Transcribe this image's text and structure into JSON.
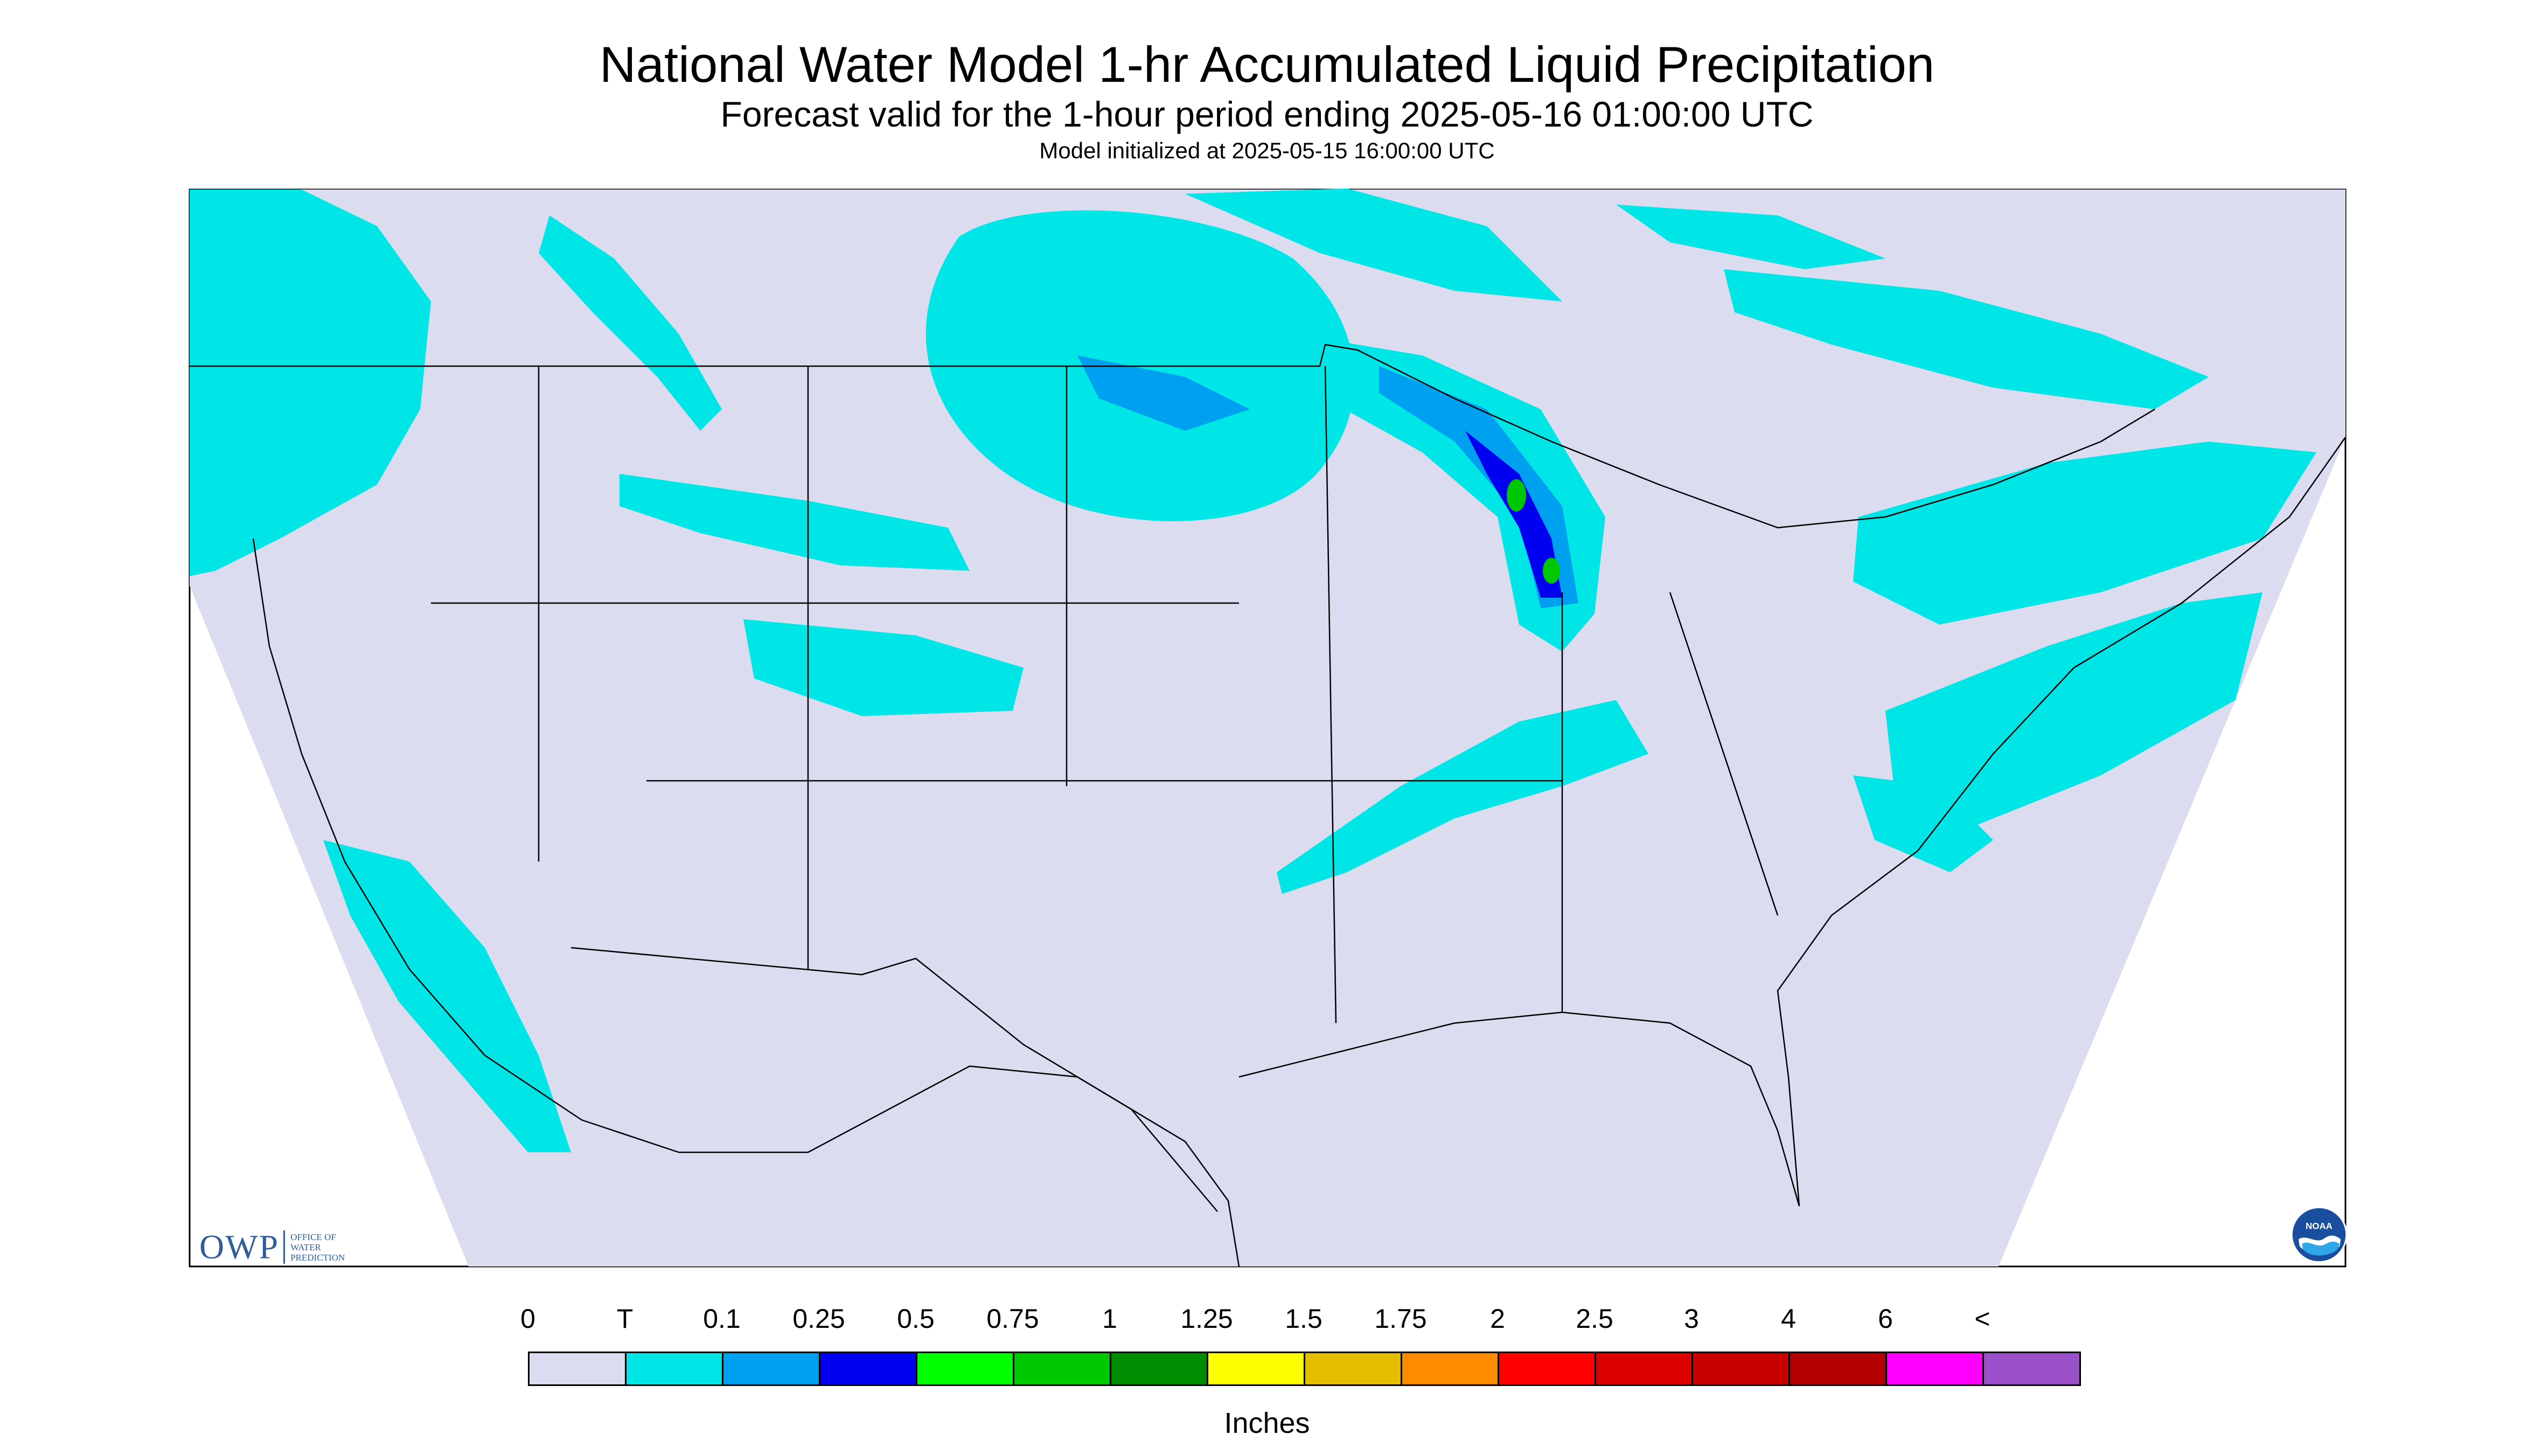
{
  "header": {
    "title": "National Water Model 1-hr Accumulated Liquid Precipitation",
    "subtitle": "Forecast valid for the 1-hour period ending 2025-05-16 01:00:00 UTC",
    "init": "Model initialized at 2025-05-15 16:00:00 UTC"
  },
  "legend": {
    "labels": [
      "0",
      "T",
      "0.1",
      "0.25",
      "0.5",
      "0.75",
      "1",
      "1.25",
      "1.5",
      "1.75",
      "2",
      "2.5",
      "3",
      "4",
      "6",
      "<"
    ],
    "colors": [
      "#dcdcf0",
      "#00e6e6",
      "#00a0f0",
      "#0000f0",
      "#00ff00",
      "#00c800",
      "#008c00",
      "#ffff00",
      "#e6be00",
      "#ff8c00",
      "#ff0000",
      "#dc0000",
      "#c80000",
      "#b40000",
      "#ff00ff",
      "#9a50c8"
    ],
    "units": "Inches"
  },
  "colors": {
    "no_data_background": "#ffffff",
    "domain_fill": "#dcdcf0",
    "trace": "#00e6e6",
    "light": "#00a0f0",
    "moderate": "#0000f0",
    "heavy": "#00c800",
    "boundary_line": "#000000"
  },
  "logos": {
    "owp_mark": "OWP",
    "owp_text": [
      "OFFICE OF",
      "WATER",
      "PREDICTION"
    ],
    "noaa": "NOAA"
  },
  "icons": [
    "owp-logo-icon",
    "noaa-logo-icon"
  ]
}
